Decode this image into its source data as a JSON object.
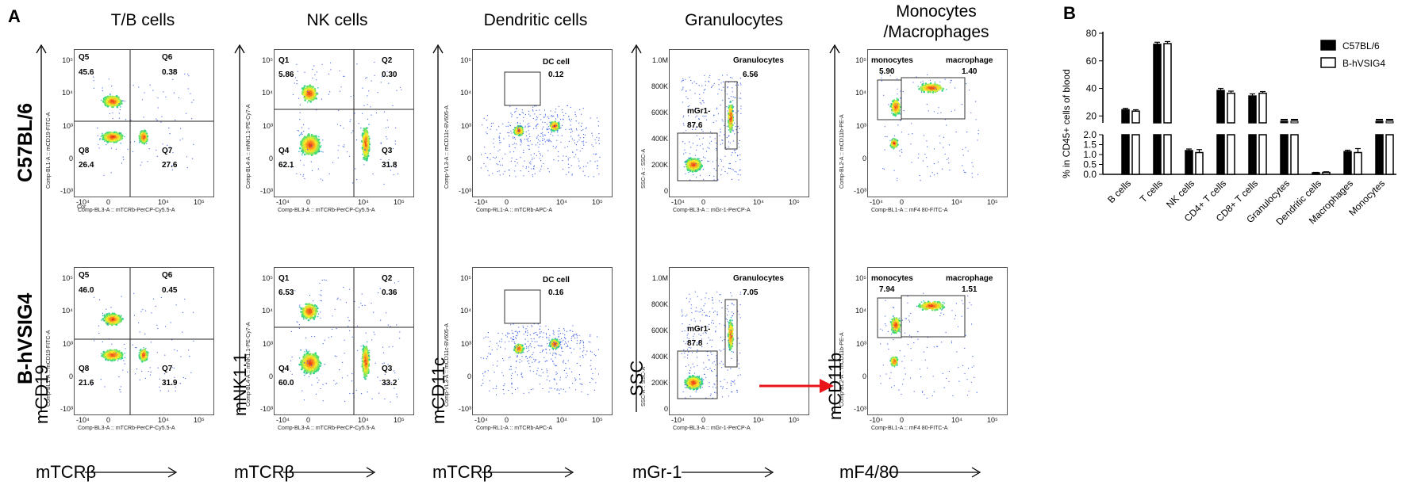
{
  "panel_label": "A",
  "panel_label_b": "B",
  "rows": [
    "C57BL/6",
    "B-hVSIG4"
  ],
  "columns": [
    {
      "title": "T/B cells",
      "y_marker": "mCD19",
      "x_marker": "mTCRβ",
      "y_channel": "Comp-BL1-A :: mCD19-FITC-A",
      "x_channel": "Comp-BL3-A :: mTCRb-PerCP-Cy5.5-A",
      "x_channel_top": "Cor",
      "x_ticks": [
        "-10⁴",
        "0",
        "10⁴",
        "10⁵"
      ],
      "y_ticks": [
        "10⁵",
        "10⁴",
        "10³",
        "0",
        "-10³"
      ],
      "quadrants": [
        {
          "Q5": "45.6",
          "Q6": "0.38",
          "Q8": "26.4",
          "Q7": "27.6"
        },
        {
          "Q5": "46.0",
          "Q6": "0.45",
          "Q8": "21.6",
          "Q7": "31.9"
        }
      ]
    },
    {
      "title": "NK cells",
      "y_marker": "mNK1.1",
      "x_marker": "mTCRβ",
      "y_channel": "Comp-BL4-A :: mNK1.1-PE-Cy7-A",
      "x_channel": "Comp-BL3-A :: mTCRb-PerCP-Cy5.5-A",
      "x_ticks": [
        "-10⁴",
        "0",
        "10⁴",
        "10⁵"
      ],
      "y_ticks": [
        "10⁵",
        "10⁴",
        "10³",
        "0",
        "-10³"
      ],
      "quadrants": [
        {
          "Q1": "5.86",
          "Q2": "0.30",
          "Q4": "62.1",
          "Q3": "31.8"
        },
        {
          "Q1": "6.53",
          "Q2": "0.36",
          "Q4": "60.0",
          "Q3": "33.2"
        }
      ]
    },
    {
      "title": "Dendritic cells",
      "y_marker": "mCD11c",
      "x_marker": "mTCRβ",
      "y_channel": "Comp-VL3-A :: mCD11c-BV605-A",
      "x_channel": "Comp-RL1-A :: mTCRb-APC-A",
      "x_ticks": [
        "-10⁴",
        "0",
        "10⁴",
        "10⁵"
      ],
      "y_ticks": [
        "10⁵",
        "10⁴",
        "10³",
        "0",
        "-10³"
      ],
      "gate_label": "DC cell",
      "values": [
        "0.12",
        "0.16"
      ]
    },
    {
      "title": "Granulocytes",
      "y_marker": "SSC",
      "x_marker": "mGr-1",
      "y_channel": "SSC-A :: SSC-A",
      "x_channel": "Comp-BL3-A :: mGr-1-PerCP-A",
      "x_ticks": [
        "-10⁴",
        "0",
        "10⁴",
        "10⁵"
      ],
      "y_ticks": [
        "1.0M",
        "800K",
        "600K",
        "400K",
        "200K",
        "0"
      ],
      "gate_label": "Granulocytes",
      "gate2_label": "mGr1-",
      "values": [
        "6.56",
        "7.05"
      ],
      "values2": [
        "87.6",
        "87.8"
      ]
    },
    {
      "title": "Monocytes\n/Macrophages",
      "title_line1": "Monocytes",
      "title_line2": "/Macrophages",
      "y_marker": "mCD11b",
      "x_marker": "mF4/80",
      "y_channel": "Comp-BL2-A :: mCD11b-PE-A",
      "x_channel": "Comp-BL1-A :: mF4 80-FITC-A",
      "x_ticks": [
        "-10⁴",
        "0",
        "10⁴",
        "10⁵"
      ],
      "y_ticks": [
        "10⁵",
        "10⁴",
        "10³",
        "0",
        "-10³"
      ],
      "gate_label": "monocytes",
      "gate2_label": "macrophage",
      "values": [
        "5.90",
        "7.94"
      ],
      "values2": [
        "1.40",
        "1.51"
      ]
    }
  ],
  "chart_data": {
    "type": "bar",
    "ylabel": "% in CD45+ cells of blood",
    "categories": [
      "B cells",
      "T cells",
      "NK cells",
      "CD4+ T cells",
      "CD8+ T cells",
      "Granulocytes",
      "Dendritic cells",
      "Macrophages",
      "Monocytes"
    ],
    "series": [
      {
        "name": "C57BL/6",
        "values": [
          24.5,
          72.0,
          1.2,
          38.5,
          34.5,
          7.5,
          0.08,
          1.15,
          5.9
        ]
      },
      {
        "name": "B-hVSIG4",
        "values": [
          23.5,
          72.5,
          1.1,
          36.5,
          36.5,
          7.5,
          0.1,
          1.1,
          6.0
        ]
      }
    ],
    "errors": [
      [
        1.0,
        1.5,
        0.08,
        1.5,
        1.5,
        1.0,
        0.02,
        0.07,
        0.3
      ],
      [
        1.0,
        1.5,
        0.15,
        1.5,
        1.2,
        1.0,
        0.03,
        0.2,
        0.3
      ]
    ],
    "y_upper_ticks": [
      "20",
      "40",
      "60",
      "80"
    ],
    "y_lower_ticks": [
      "0.0",
      "0.5",
      "1.0",
      "1.5",
      "2.0"
    ],
    "broken_axis": true,
    "legend_position": "top-right",
    "colors": {
      "C57BL/6": "#000000",
      "B-hVSIG4": "#ffffff"
    }
  }
}
